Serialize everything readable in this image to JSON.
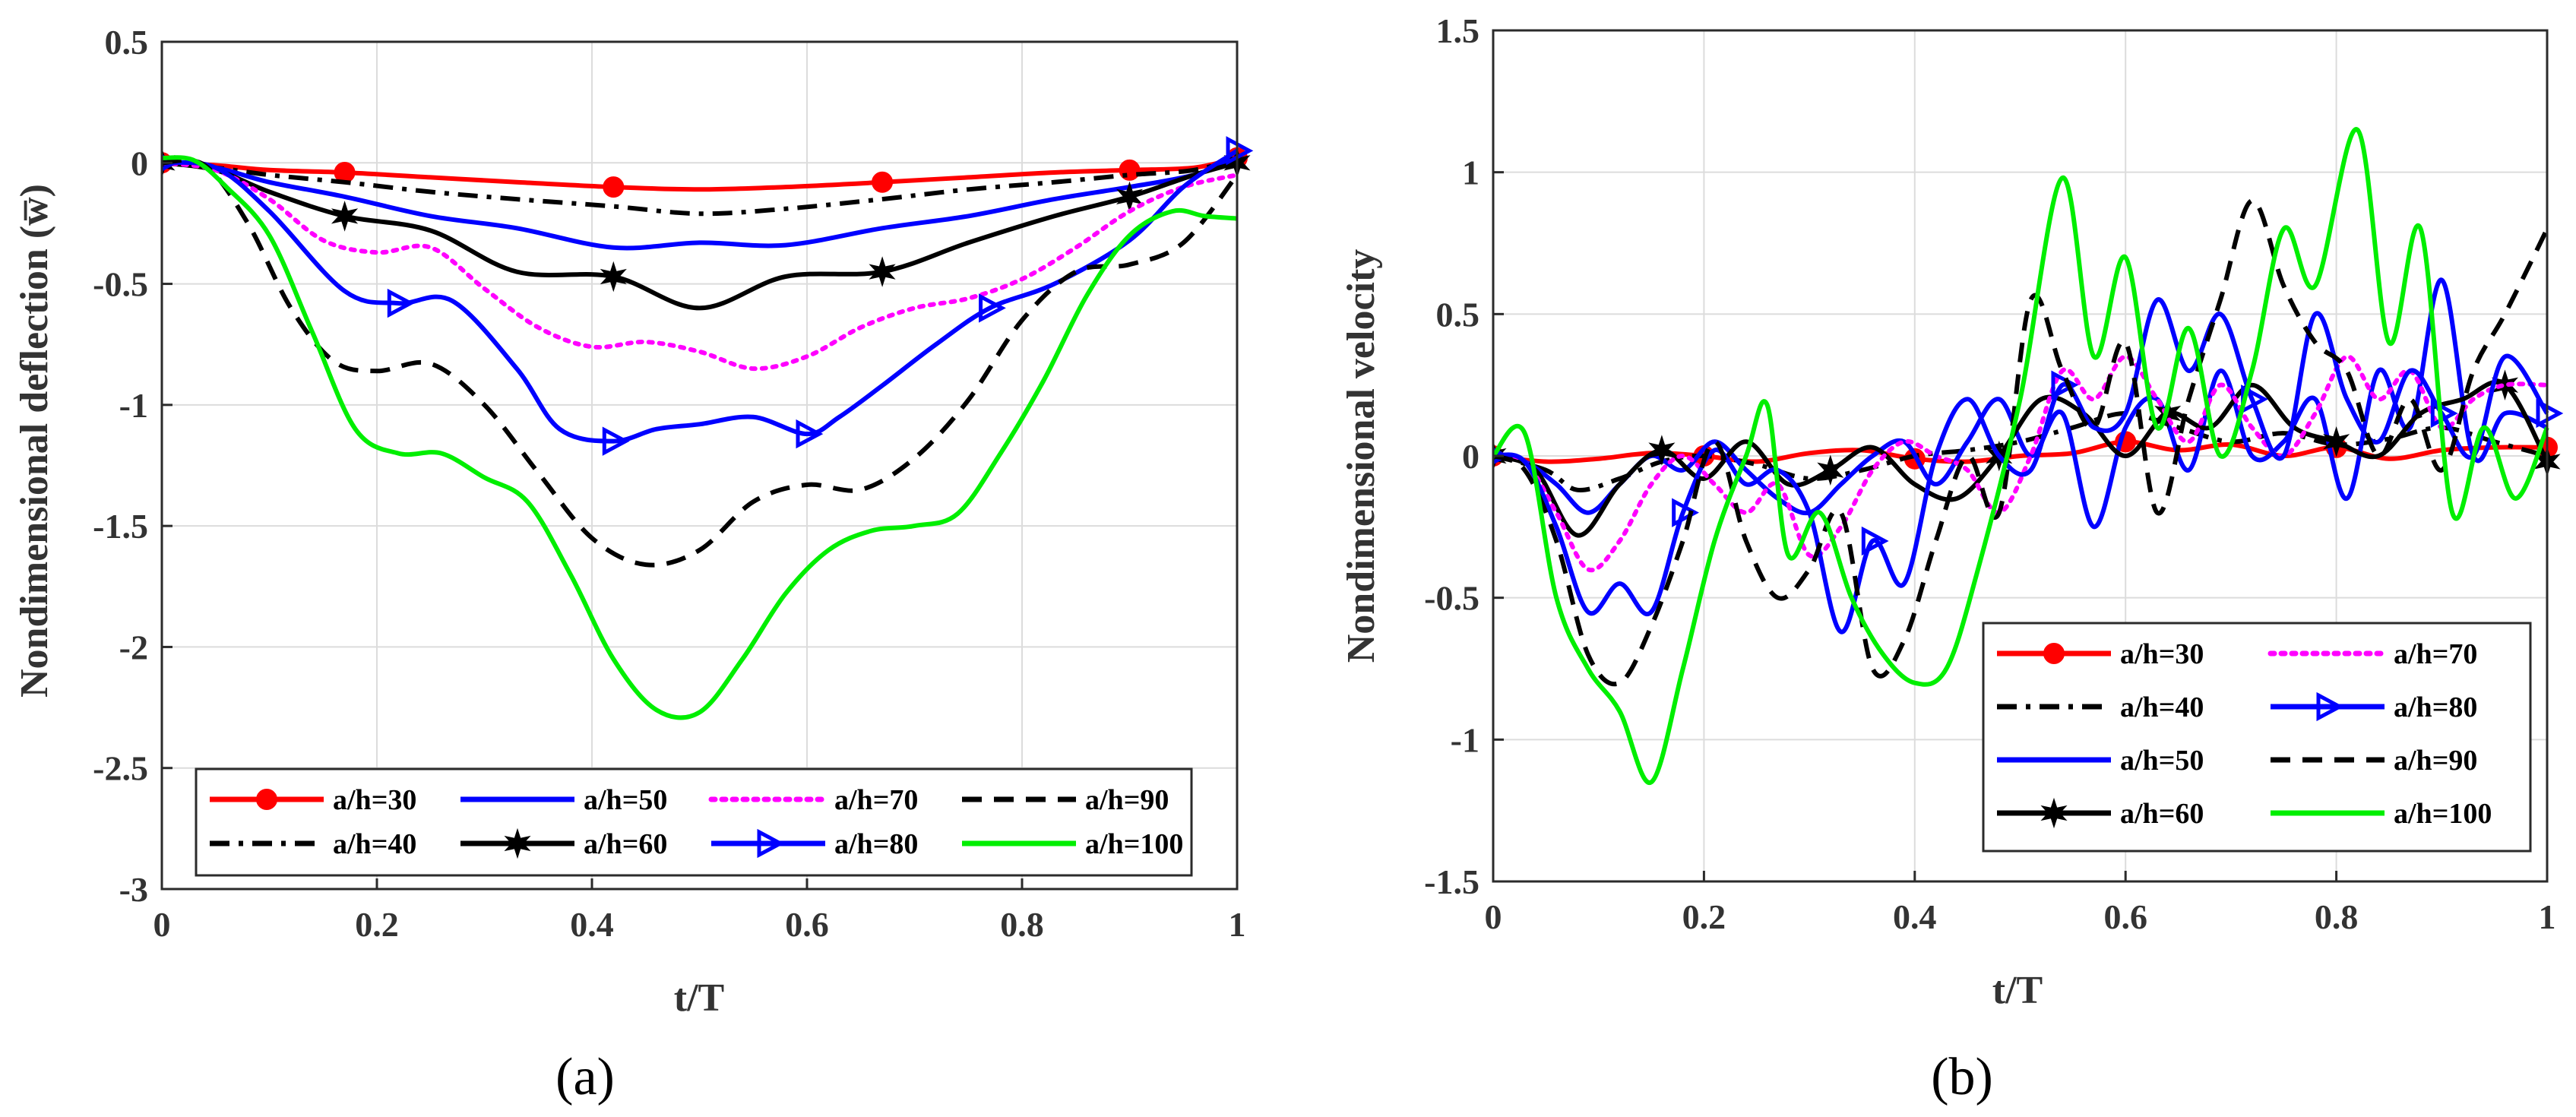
{
  "chart_data": [
    {
      "type": "line",
      "caption": "(a)",
      "xlabel": "t/T",
      "ylabel": "Nondimensional deflection (w̅)",
      "xlim": [
        0,
        1
      ],
      "ylim": [
        -3,
        0.5
      ],
      "xticks": [
        0,
        0.2,
        0.4,
        0.6,
        0.8,
        1
      ],
      "xtick_labels": [
        "0",
        "0.2",
        "0.4",
        "0.6",
        "0.8",
        "1"
      ],
      "yticks": [
        -3,
        -2.5,
        -2,
        -1.5,
        -1,
        -0.5,
        0,
        0.5
      ],
      "ytick_labels": [
        "-3",
        "-2.5",
        "-2",
        "-1.5",
        "-1",
        "-0.5",
        "0",
        "0.5"
      ],
      "grid": true,
      "legend": {
        "location": "bottom",
        "columns": 4
      },
      "series": [
        {
          "name": "a/h=30",
          "color": "#ff0000",
          "dash": "solid",
          "marker": "circle",
          "x": [
            0,
            0.05,
            0.1,
            0.17,
            0.25,
            0.33,
            0.42,
            0.5,
            0.58,
            0.67,
            0.75,
            0.83,
            0.9,
            0.96,
            1
          ],
          "y": [
            0,
            -0.01,
            -0.03,
            -0.04,
            -0.06,
            -0.08,
            -0.1,
            -0.11,
            -0.1,
            -0.08,
            -0.06,
            -0.04,
            -0.03,
            -0.02,
            0.02
          ]
        },
        {
          "name": "a/h=40",
          "color": "#000000",
          "dash": "dashdot",
          "marker": "none",
          "x": [
            0,
            0.05,
            0.1,
            0.17,
            0.25,
            0.33,
            0.42,
            0.5,
            0.58,
            0.67,
            0.75,
            0.83,
            0.9,
            0.96,
            1
          ],
          "y": [
            0,
            -0.02,
            -0.05,
            -0.08,
            -0.12,
            -0.15,
            -0.18,
            -0.21,
            -0.19,
            -0.15,
            -0.11,
            -0.08,
            -0.05,
            -0.03,
            0.02
          ]
        },
        {
          "name": "a/h=50",
          "color": "#0000ff",
          "dash": "solid",
          "marker": "none",
          "x": [
            0,
            0.05,
            0.1,
            0.17,
            0.25,
            0.33,
            0.42,
            0.5,
            0.58,
            0.67,
            0.75,
            0.83,
            0.9,
            0.96,
            1
          ],
          "y": [
            0,
            -0.02,
            -0.08,
            -0.14,
            -0.22,
            -0.27,
            -0.35,
            -0.33,
            -0.34,
            -0.27,
            -0.22,
            -0.15,
            -0.1,
            -0.05,
            0.02
          ]
        },
        {
          "name": "a/h=60",
          "color": "#000000",
          "dash": "solid",
          "marker": "star",
          "x": [
            0,
            0.05,
            0.1,
            0.17,
            0.25,
            0.33,
            0.42,
            0.5,
            0.58,
            0.67,
            0.75,
            0.83,
            0.9,
            0.96,
            1
          ],
          "y": [
            0,
            -0.03,
            -0.12,
            -0.22,
            -0.28,
            -0.45,
            -0.47,
            -0.6,
            -0.47,
            -0.45,
            -0.33,
            -0.22,
            -0.14,
            -0.05,
            0.0
          ]
        },
        {
          "name": "a/h=70",
          "color": "#ff00ff",
          "dash": "dotted",
          "marker": "none",
          "x": [
            0,
            0.05,
            0.1,
            0.15,
            0.2,
            0.25,
            0.3,
            0.35,
            0.4,
            0.45,
            0.5,
            0.55,
            0.6,
            0.65,
            0.7,
            0.75,
            0.8,
            0.85,
            0.9,
            0.95,
            1
          ],
          "y": [
            0,
            -0.03,
            -0.15,
            -0.32,
            -0.37,
            -0.35,
            -0.52,
            -0.68,
            -0.76,
            -0.74,
            -0.78,
            -0.85,
            -0.8,
            -0.68,
            -0.6,
            -0.56,
            -0.48,
            -0.35,
            -0.2,
            -0.1,
            -0.05
          ]
        },
        {
          "name": "a/h=80",
          "color": "#0000ff",
          "dash": "solid",
          "marker": "triangle",
          "x": [
            0,
            0.05,
            0.1,
            0.17,
            0.22,
            0.27,
            0.33,
            0.37,
            0.42,
            0.46,
            0.5,
            0.55,
            0.6,
            0.63,
            0.67,
            0.72,
            0.77,
            0.83,
            0.9,
            0.95,
            1
          ],
          "y": [
            0,
            -0.02,
            -0.2,
            -0.53,
            -0.58,
            -0.57,
            -0.85,
            -1.1,
            -1.15,
            -1.1,
            -1.08,
            -1.05,
            -1.12,
            -1.05,
            -0.92,
            -0.75,
            -0.6,
            -0.5,
            -0.32,
            -0.1,
            0.05
          ]
        },
        {
          "name": "a/h=90",
          "color": "#000000",
          "dash": "dashed",
          "marker": "none",
          "x": [
            0,
            0.04,
            0.08,
            0.12,
            0.16,
            0.2,
            0.25,
            0.3,
            0.35,
            0.4,
            0.45,
            0.5,
            0.55,
            0.6,
            0.65,
            0.7,
            0.75,
            0.8,
            0.85,
            0.9,
            0.95,
            1
          ],
          "y": [
            0,
            -0.01,
            -0.25,
            -0.6,
            -0.82,
            -0.86,
            -0.83,
            -1.0,
            -1.28,
            -1.55,
            -1.66,
            -1.6,
            -1.4,
            -1.33,
            -1.35,
            -1.22,
            -0.98,
            -0.65,
            -0.45,
            -0.42,
            -0.33,
            -0.05
          ]
        },
        {
          "name": "a/h=100",
          "color": "#00ee00",
          "dash": "solid",
          "marker": "none",
          "x": [
            0,
            0.03,
            0.06,
            0.1,
            0.14,
            0.18,
            0.22,
            0.26,
            0.3,
            0.34,
            0.38,
            0.42,
            0.46,
            0.5,
            0.54,
            0.58,
            0.62,
            0.66,
            0.7,
            0.74,
            0.78,
            0.82,
            0.86,
            0.9,
            0.94,
            0.97,
            1
          ],
          "y": [
            0.02,
            0.01,
            -0.1,
            -0.3,
            -0.7,
            -1.1,
            -1.2,
            -1.2,
            -1.3,
            -1.4,
            -1.7,
            -2.05,
            -2.26,
            -2.27,
            -2.05,
            -1.78,
            -1.6,
            -1.52,
            -1.5,
            -1.45,
            -1.2,
            -0.9,
            -0.55,
            -0.3,
            -0.2,
            -0.22,
            -0.23
          ]
        }
      ]
    },
    {
      "type": "line",
      "caption": "(b)",
      "xlabel": "t/T",
      "ylabel": "Nondimensional velocity",
      "xlim": [
        0,
        1
      ],
      "ylim": [
        -1.5,
        1.5
      ],
      "xticks": [
        0,
        0.2,
        0.4,
        0.6,
        0.8,
        1
      ],
      "xtick_labels": [
        "0",
        "0.2",
        "0.4",
        "0.6",
        "0.8",
        "1"
      ],
      "yticks": [
        -1.5,
        -1,
        -0.5,
        0,
        0.5,
        1,
        1.5
      ],
      "ytick_labels": [
        "-1.5",
        "-1",
        "-0.5",
        "0",
        "0.5",
        "1",
        "1.5"
      ],
      "grid": true,
      "legend": {
        "location": "bottom-right",
        "columns": 2
      },
      "series": [
        {
          "name": "a/h=30",
          "color": "#ff0000",
          "dash": "solid",
          "marker": "circle",
          "x": [
            0,
            0.05,
            0.1,
            0.15,
            0.2,
            0.25,
            0.3,
            0.35,
            0.4,
            0.45,
            0.5,
            0.55,
            0.6,
            0.65,
            0.7,
            0.75,
            0.8,
            0.85,
            0.9,
            0.95,
            1
          ],
          "y": [
            0,
            -0.02,
            -0.01,
            0.01,
            0.0,
            -0.02,
            0.01,
            0.02,
            -0.01,
            -0.02,
            0.0,
            0.01,
            0.05,
            0.02,
            0.04,
            0.0,
            0.03,
            -0.01,
            0.02,
            0.03,
            0.03
          ]
        },
        {
          "name": "a/h=40",
          "color": "#000000",
          "dash": "dashdot",
          "marker": "none",
          "x": [
            0,
            0.05,
            0.08,
            0.12,
            0.16,
            0.2,
            0.25,
            0.3,
            0.35,
            0.4,
            0.45,
            0.5,
            0.55,
            0.6,
            0.65,
            0.7,
            0.75,
            0.8,
            0.85,
            0.9,
            0.95,
            1
          ],
          "y": [
            0,
            -0.05,
            -0.12,
            -0.08,
            -0.02,
            0.0,
            -0.03,
            -0.08,
            -0.05,
            0.0,
            0.02,
            0.05,
            0.1,
            0.15,
            0.1,
            0.05,
            0.08,
            0.04,
            0.06,
            0.1,
            0.05,
            0.0
          ]
        },
        {
          "name": "a/h=50",
          "color": "#0000ff",
          "dash": "solid",
          "marker": "none",
          "x": [
            0,
            0.03,
            0.06,
            0.09,
            0.12,
            0.15,
            0.18,
            0.21,
            0.24,
            0.27,
            0.3,
            0.33,
            0.36,
            0.39,
            0.42,
            0.45,
            0.48,
            0.51,
            0.54,
            0.57,
            0.6,
            0.63,
            0.66,
            0.69,
            0.72,
            0.75,
            0.78,
            0.81,
            0.84,
            0.87,
            0.9,
            0.93,
            0.96,
            1
          ],
          "y": [
            0,
            -0.02,
            -0.1,
            -0.2,
            -0.1,
            0.0,
            -0.05,
            0.05,
            -0.05,
            -0.15,
            -0.2,
            -0.1,
            0.0,
            0.05,
            -0.1,
            0.05,
            0.2,
            0.0,
            0.15,
            -0.25,
            0.1,
            0.2,
            -0.05,
            0.3,
            0.0,
            0.05,
            0.2,
            -0.15,
            0.3,
            0.1,
            0.62,
            0.0,
            0.15,
            0.1
          ]
        },
        {
          "name": "a/h=60",
          "color": "#000000",
          "dash": "solid",
          "marker": "star",
          "x": [
            0,
            0.04,
            0.08,
            0.12,
            0.16,
            0.2,
            0.24,
            0.28,
            0.32,
            0.36,
            0.4,
            0.44,
            0.48,
            0.52,
            0.56,
            0.6,
            0.64,
            0.68,
            0.72,
            0.76,
            0.8,
            0.84,
            0.88,
            0.92,
            0.96,
            1
          ],
          "y": [
            0,
            -0.05,
            -0.28,
            -0.1,
            0.02,
            -0.08,
            0.05,
            -0.1,
            -0.05,
            0.03,
            -0.1,
            -0.15,
            0.0,
            0.2,
            0.15,
            0.0,
            0.15,
            0.1,
            0.25,
            0.1,
            0.05,
            0.0,
            0.15,
            0.2,
            0.25,
            -0.02
          ]
        },
        {
          "name": "a/h=70",
          "color": "#ff00ff",
          "dash": "dotted",
          "marker": "none",
          "x": [
            0,
            0.03,
            0.06,
            0.09,
            0.12,
            0.15,
            0.18,
            0.21,
            0.24,
            0.27,
            0.3,
            0.33,
            0.36,
            0.39,
            0.42,
            0.45,
            0.48,
            0.51,
            0.54,
            0.57,
            0.6,
            0.63,
            0.66,
            0.69,
            0.72,
            0.75,
            0.78,
            0.81,
            0.84,
            0.87,
            0.9,
            0.93,
            0.96,
            1
          ],
          "y": [
            0,
            -0.02,
            -0.2,
            -0.4,
            -0.3,
            -0.1,
            0.0,
            -0.1,
            -0.2,
            -0.1,
            -0.35,
            -0.25,
            -0.05,
            0.05,
            0.0,
            -0.05,
            -0.2,
            0.0,
            0.3,
            0.2,
            0.35,
            0.2,
            0.05,
            0.25,
            0.1,
            0.0,
            0.15,
            0.35,
            0.2,
            0.3,
            0.1,
            0.2,
            0.25,
            0.25
          ]
        },
        {
          "name": "a/h=80",
          "color": "#0000ff",
          "dash": "solid",
          "marker": "triangle",
          "x": [
            0,
            0.03,
            0.06,
            0.09,
            0.12,
            0.15,
            0.18,
            0.21,
            0.24,
            0.27,
            0.3,
            0.33,
            0.36,
            0.39,
            0.42,
            0.45,
            0.48,
            0.51,
            0.54,
            0.57,
            0.6,
            0.63,
            0.66,
            0.69,
            0.72,
            0.75,
            0.78,
            0.81,
            0.84,
            0.87,
            0.9,
            0.93,
            0.96,
            1
          ],
          "y": [
            0,
            -0.02,
            -0.25,
            -0.55,
            -0.45,
            -0.55,
            -0.2,
            0.02,
            -0.1,
            -0.05,
            -0.2,
            -0.62,
            -0.3,
            -0.45,
            0.0,
            0.2,
            0.0,
            -0.05,
            0.25,
            0.1,
            0.15,
            0.55,
            0.3,
            0.5,
            0.2,
            0.0,
            0.5,
            0.2,
            0.05,
            0.3,
            0.15,
            0.0,
            0.35,
            0.15
          ]
        },
        {
          "name": "a/h=90",
          "color": "#000000",
          "dash": "dashed",
          "marker": "none",
          "x": [
            0,
            0.03,
            0.06,
            0.09,
            0.12,
            0.15,
            0.18,
            0.21,
            0.24,
            0.27,
            0.3,
            0.33,
            0.36,
            0.39,
            0.42,
            0.45,
            0.48,
            0.51,
            0.54,
            0.57,
            0.6,
            0.63,
            0.66,
            0.69,
            0.72,
            0.75,
            0.78,
            0.81,
            0.84,
            0.87,
            0.9,
            0.93,
            0.96,
            1
          ],
          "y": [
            0,
            -0.05,
            -0.3,
            -0.7,
            -0.8,
            -0.6,
            -0.3,
            0.05,
            -0.3,
            -0.5,
            -0.4,
            -0.2,
            -0.75,
            -0.65,
            -0.3,
            0.0,
            -0.2,
            0.55,
            0.3,
            0.1,
            0.4,
            -0.2,
            0.2,
            0.55,
            0.9,
            0.6,
            0.4,
            0.3,
            0.0,
            0.2,
            -0.05,
            0.3,
            0.5,
            0.8
          ]
        },
        {
          "name": "a/h=100",
          "color": "#00ee00",
          "dash": "solid",
          "marker": "none",
          "x": [
            0,
            0.03,
            0.06,
            0.09,
            0.12,
            0.15,
            0.18,
            0.21,
            0.24,
            0.26,
            0.28,
            0.31,
            0.34,
            0.37,
            0.4,
            0.43,
            0.46,
            0.5,
            0.54,
            0.57,
            0.6,
            0.63,
            0.66,
            0.69,
            0.72,
            0.75,
            0.78,
            0.82,
            0.85,
            0.88,
            0.91,
            0.94,
            0.97,
            1
          ],
          "y": [
            0,
            0.08,
            -0.5,
            -0.75,
            -0.9,
            -1.15,
            -0.75,
            -0.3,
            0.0,
            0.18,
            -0.35,
            -0.2,
            -0.5,
            -0.7,
            -0.8,
            -0.75,
            -0.4,
            0.2,
            0.98,
            0.35,
            0.7,
            0.1,
            0.45,
            0.0,
            0.3,
            0.8,
            0.6,
            1.15,
            0.4,
            0.8,
            -0.2,
            0.1,
            -0.15,
            0.1
          ]
        }
      ]
    }
  ]
}
